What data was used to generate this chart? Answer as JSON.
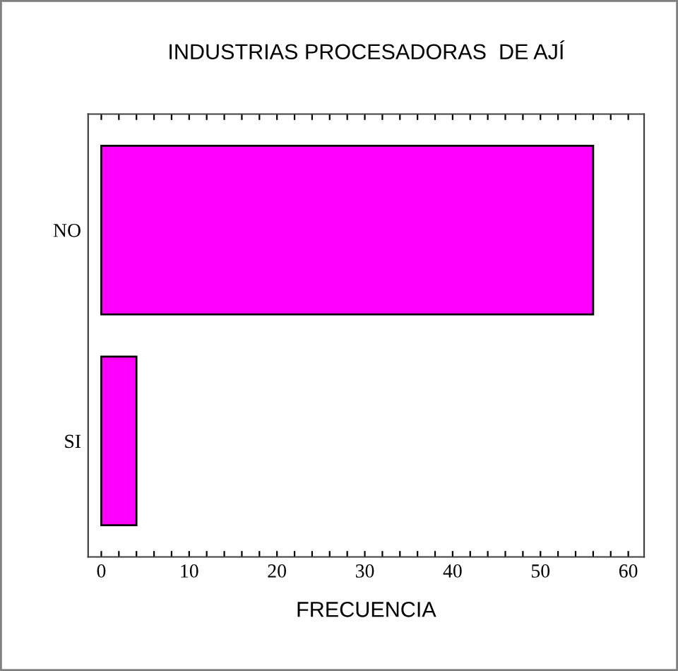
{
  "chart_data": {
    "type": "bar",
    "orientation": "horizontal",
    "title": "INDUSTRIAS PROCESADORAS  DE AJÍ",
    "xlabel": "FRECUENCIA",
    "categories": [
      "NO",
      "SI"
    ],
    "values": [
      56,
      4
    ],
    "color": "#ff00ff",
    "xlim": [
      -1.5,
      61.8
    ],
    "xticks": [
      0,
      {
        "value": 2,
        "label": null
      },
      {
        "value": 4,
        "label": null
      },
      {
        "value": 6,
        "label": null
      },
      {
        "value": 8,
        "label": null
      },
      10,
      {
        "value": 12,
        "label": null
      },
      {
        "value": 14,
        "label": null
      },
      {
        "value": 16,
        "label": null
      },
      {
        "value": 18,
        "label": null
      },
      20,
      {
        "value": 22,
        "label": null
      },
      {
        "value": 24,
        "label": null
      },
      {
        "value": 26,
        "label": null
      },
      {
        "value": 28,
        "label": null
      },
      30,
      {
        "value": 32,
        "label": null
      },
      {
        "value": 34,
        "label": null
      },
      {
        "value": 36,
        "label": null
      },
      {
        "value": 38,
        "label": null
      },
      40,
      {
        "value": 42,
        "label": null
      },
      {
        "value": 44,
        "label": null
      },
      {
        "value": 46,
        "label": null
      },
      {
        "value": 48,
        "label": null
      },
      50,
      {
        "value": 52,
        "label": null
      },
      {
        "value": 54,
        "label": null
      },
      {
        "value": 56,
        "label": null
      },
      {
        "value": 58,
        "label": null
      },
      60
    ],
    "grid": false
  }
}
